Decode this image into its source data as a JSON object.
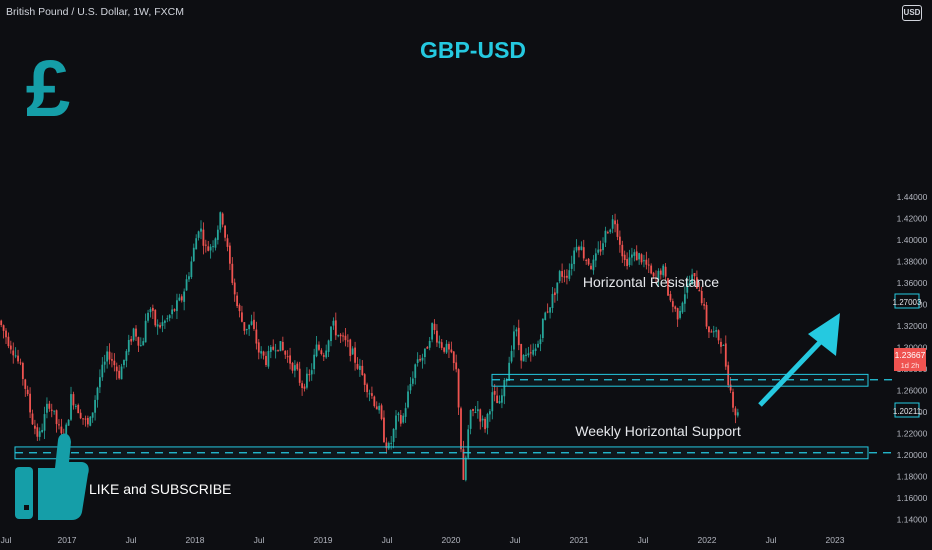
{
  "header": {
    "symbol": "British Pound / U.S. Dollar, 1W, FXCM",
    "currency_badge": "USD"
  },
  "overlay": {
    "title": "GBP-USD",
    "currency_symbol": "£",
    "like_text": "LIKE and SUBSCRIBE",
    "resistance_label": "Horizontal Resistance",
    "support_label": "Weekly Horizontal Support",
    "colors": {
      "accent": "#25c9e0",
      "icon": "#159ea8",
      "up": "#26a69a",
      "down": "#ef5350"
    }
  },
  "price_badges": {
    "resistance": "1.27003",
    "support": "1.20211",
    "last_price": "1.23667",
    "countdown": "1d 2h"
  },
  "chart_data": {
    "type": "candlestick",
    "title": "",
    "timeframe": "1W",
    "x_ticks": [
      "Jul",
      "2017",
      "Jul",
      "2018",
      "Jul",
      "2019",
      "Jul",
      "2020",
      "Jul",
      "2021",
      "Jul",
      "2022",
      "Jul",
      "2023"
    ],
    "y_ticks": [
      "1.14000",
      "1.16000",
      "1.18000",
      "1.20000",
      "1.22000",
      "1.24000",
      "1.26000",
      "1.28000",
      "1.30000",
      "1.32000",
      "1.34000",
      "1.36000",
      "1.38000",
      "1.40000",
      "1.42000",
      "1.44000"
    ],
    "ylim": [
      1.137,
      1.452
    ],
    "xlim": [
      2016.5,
      2023.45
    ],
    "grid": false,
    "legend": "none",
    "price_path": [
      [
        2016.5,
        1.325
      ],
      [
        2016.56,
        1.31
      ],
      [
        2016.63,
        1.295
      ],
      [
        2016.7,
        1.27
      ],
      [
        2016.76,
        1.235
      ],
      [
        2016.82,
        1.215
      ],
      [
        2016.9,
        1.25
      ],
      [
        2016.96,
        1.23
      ],
      [
        2017.02,
        1.21
      ],
      [
        2017.08,
        1.255
      ],
      [
        2017.15,
        1.24
      ],
      [
        2017.22,
        1.225
      ],
      [
        2017.3,
        1.27
      ],
      [
        2017.38,
        1.295
      ],
      [
        2017.46,
        1.275
      ],
      [
        2017.52,
        1.295
      ],
      [
        2017.58,
        1.318
      ],
      [
        2017.64,
        1.3
      ],
      [
        2017.7,
        1.34
      ],
      [
        2017.76,
        1.318
      ],
      [
        2017.84,
        1.325
      ],
      [
        2017.9,
        1.335
      ],
      [
        2017.96,
        1.345
      ],
      [
        2018.03,
        1.375
      ],
      [
        2018.1,
        1.415
      ],
      [
        2018.16,
        1.39
      ],
      [
        2018.22,
        1.4
      ],
      [
        2018.28,
        1.425
      ],
      [
        2018.34,
        1.38
      ],
      [
        2018.4,
        1.34
      ],
      [
        2018.46,
        1.318
      ],
      [
        2018.52,
        1.322
      ],
      [
        2018.58,
        1.295
      ],
      [
        2018.64,
        1.288
      ],
      [
        2018.72,
        1.305
      ],
      [
        2018.78,
        1.295
      ],
      [
        2018.86,
        1.282
      ],
      [
        2018.92,
        1.265
      ],
      [
        2018.98,
        1.272
      ],
      [
        2019.04,
        1.3
      ],
      [
        2019.1,
        1.295
      ],
      [
        2019.16,
        1.322
      ],
      [
        2019.22,
        1.31
      ],
      [
        2019.3,
        1.3
      ],
      [
        2019.36,
        1.285
      ],
      [
        2019.42,
        1.27
      ],
      [
        2019.48,
        1.255
      ],
      [
        2019.54,
        1.24
      ],
      [
        2019.58,
        1.215
      ],
      [
        2019.62,
        1.205
      ],
      [
        2019.68,
        1.235
      ],
      [
        2019.72,
        1.23
      ],
      [
        2019.78,
        1.262
      ],
      [
        2019.84,
        1.29
      ],
      [
        2019.9,
        1.292
      ],
      [
        2019.96,
        1.32
      ],
      [
        2020.02,
        1.305
      ],
      [
        2020.1,
        1.295
      ],
      [
        2020.16,
        1.275
      ],
      [
        2020.21,
        1.17
      ],
      [
        2020.26,
        1.235
      ],
      [
        2020.32,
        1.245
      ],
      [
        2020.38,
        1.225
      ],
      [
        2020.44,
        1.255
      ],
      [
        2020.5,
        1.245
      ],
      [
        2020.56,
        1.275
      ],
      [
        2020.62,
        1.32
      ],
      [
        2020.68,
        1.29
      ],
      [
        2020.74,
        1.29
      ],
      [
        2020.8,
        1.3
      ],
      [
        2020.86,
        1.33
      ],
      [
        2020.92,
        1.345
      ],
      [
        2020.98,
        1.368
      ],
      [
        2021.05,
        1.37
      ],
      [
        2021.12,
        1.4
      ],
      [
        2021.18,
        1.385
      ],
      [
        2021.24,
        1.375
      ],
      [
        2021.3,
        1.39
      ],
      [
        2021.36,
        1.41
      ],
      [
        2021.42,
        1.42
      ],
      [
        2021.46,
        1.4
      ],
      [
        2021.5,
        1.38
      ],
      [
        2021.56,
        1.385
      ],
      [
        2021.62,
        1.385
      ],
      [
        2021.68,
        1.375
      ],
      [
        2021.74,
        1.36
      ],
      [
        2021.8,
        1.375
      ],
      [
        2021.86,
        1.345
      ],
      [
        2021.92,
        1.33
      ],
      [
        2021.98,
        1.352
      ],
      [
        2022.04,
        1.365
      ],
      [
        2022.1,
        1.355
      ],
      [
        2022.16,
        1.318
      ],
      [
        2022.22,
        1.312
      ],
      [
        2022.28,
        1.305
      ],
      [
        2022.32,
        1.275
      ],
      [
        2022.36,
        1.252
      ],
      [
        2022.39,
        1.237
      ]
    ]
  }
}
